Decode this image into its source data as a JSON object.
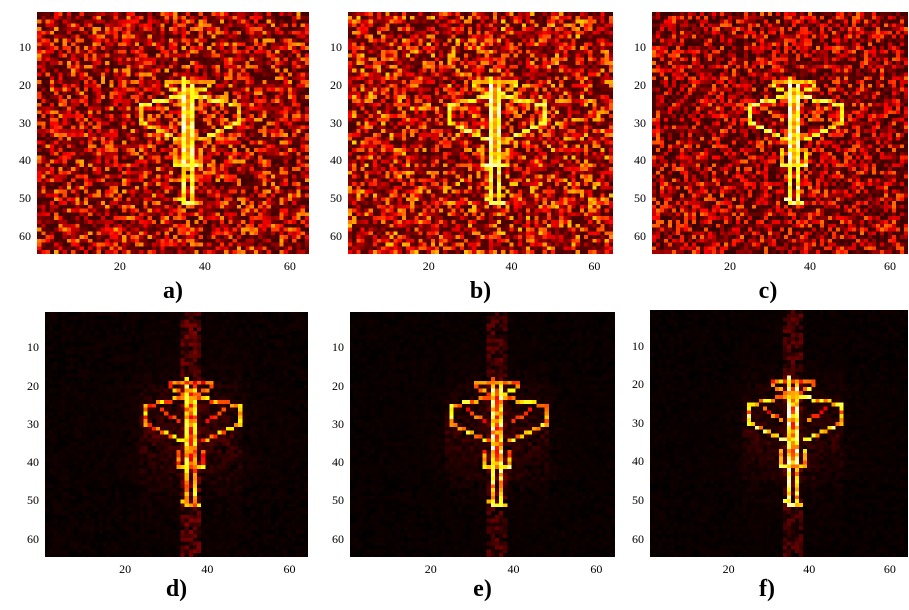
{
  "panels": [
    {
      "label": "a)",
      "kind": "noisy",
      "seed": 11,
      "noise": 0.62,
      "signal": 0.95,
      "blur": 0.15
    },
    {
      "label": "b)",
      "kind": "noisy",
      "seed": 23,
      "noise": 0.68,
      "signal": 0.97,
      "blur": 0.15
    },
    {
      "label": "c)",
      "kind": "noisy",
      "seed": 37,
      "noise": 0.55,
      "signal": 1.0,
      "blur": 0.15
    },
    {
      "label": "d)",
      "kind": "recon",
      "seed": 41,
      "noise": 0.06,
      "signal": 0.85,
      "blur": 0.55
    },
    {
      "label": "e)",
      "kind": "recon",
      "seed": 53,
      "noise": 0.05,
      "signal": 0.95,
      "blur": 0.45
    },
    {
      "label": "f)",
      "kind": "recon",
      "seed": 67,
      "noise": 0.05,
      "signal": 1.0,
      "blur": 0.45
    }
  ],
  "y_ticks": [
    "10",
    "20",
    "30",
    "40",
    "50",
    "60"
  ],
  "x_ticks": [
    "20",
    "40",
    "60"
  ],
  "colormap": "hot"
}
